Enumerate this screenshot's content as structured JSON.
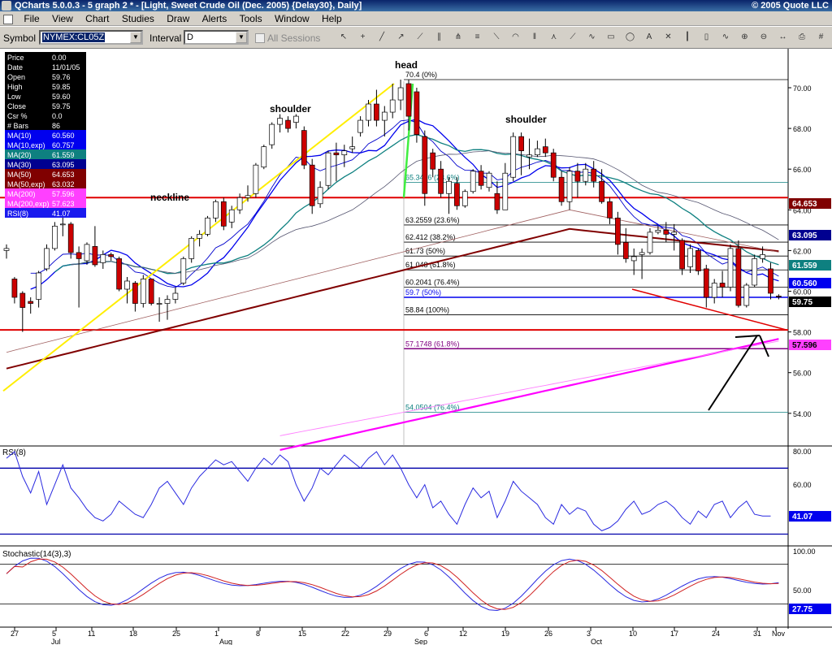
{
  "window": {
    "title": "QCharts 5.0.0.3 - 5 graph 2 * - [Light, Sweet Crude Oil (Dec. 2005) {Delay30}, Daily]",
    "copyright": "© 2005 Quote LLC"
  },
  "menu": [
    "File",
    "View",
    "Chart",
    "Studies",
    "Draw",
    "Alerts",
    "Tools",
    "Window",
    "Help"
  ],
  "toolbar": {
    "symbol_label": "Symbol",
    "symbol_value": "NYMEX:CL05Z",
    "interval_label": "Interval",
    "interval_value": "D",
    "all_sessions_label": "All Sessions"
  },
  "tools": [
    "cursor-icon",
    "crosshair-icon",
    "line-icon",
    "ray-icon",
    "extended-line-icon",
    "channel-icon",
    "andrews-pitchfork-icon",
    "fibonacci-retracement-icon",
    "fibonacci-fan-icon",
    "fibonacci-arcs-icon",
    "fibonacci-timezones-icon",
    "gann-fan-icon",
    "speed-lines-icon",
    "cycle-lines-icon",
    "rectangle-icon",
    "ellipse-icon",
    "text-annotation-icon",
    "delete-drawing-icon",
    "bar-style-icon",
    "candle-style-icon",
    "line-style-icon",
    "zoom-in-icon",
    "zoom-out-icon",
    "scroll-icon",
    "print-icon",
    "grid-icon"
  ],
  "data_window": {
    "rows": [
      [
        "Price",
        "0.00",
        "#000000",
        "#ffffff"
      ],
      [
        "Date",
        "11/01/05",
        "#000000",
        "#ffffff"
      ],
      [
        "Open",
        "59.76",
        "#000000",
        "#ffffff"
      ],
      [
        "High",
        "59.85",
        "#000000",
        "#ffffff"
      ],
      [
        "Low",
        "59.60",
        "#000000",
        "#ffffff"
      ],
      [
        "Close",
        "59.75",
        "#000000",
        "#ffffff"
      ],
      [
        "Csr %",
        "0.0",
        "#000000",
        "#ffffff"
      ],
      [
        "# Bars",
        "86",
        "#000000",
        "#ffffff"
      ],
      [
        "MA(10)",
        "60.560",
        "#0000ee",
        "#ffffff"
      ],
      [
        "MA(10,exp)",
        "60.757",
        "#0000ee",
        "#ffffff"
      ],
      [
        "MA(20)",
        "61.559",
        "#0e8080",
        "#ffffff"
      ],
      [
        "MA(30)",
        "63.095",
        "#000090",
        "#ffffff"
      ],
      [
        "MA(50)",
        "64.653",
        "#800000",
        "#ffffff"
      ],
      [
        "MA(50,exp)",
        "63.032",
        "#800000",
        "#ffffff"
      ],
      [
        "MA(200)",
        "57.596",
        "#ff40ff",
        "#ffffff"
      ],
      [
        "MA(200,exp)",
        "57.623",
        "#ff40ff",
        "#ffffff"
      ],
      [
        "RSI(8)",
        "41.07",
        "#1a1aee",
        "#ffffff"
      ]
    ]
  },
  "annotations": {
    "head": "head",
    "shoulder_left": "shoulder",
    "shoulder_right": "shoulder",
    "neckline": "neckline"
  },
  "fib_top": [
    "70.4 (0%)",
    "65.3496 (23.6%)",
    "63.2559 (23.6%)",
    "62.412 (38.2%)",
    "61.73 (50%)",
    "61.048 (61.8%)",
    "60.2041 (76.4%)",
    "59.7 (50%)",
    "58.84 (100%)",
    "57.1748 (61.8%)",
    "54.0504 (76.4%)"
  ],
  "price_axis": {
    "labels": [
      "70.00",
      "68.00",
      "66.00",
      "64.00",
      "62.00",
      "60.00",
      "58.00",
      "56.00",
      "54.00"
    ],
    "badges": [
      [
        "64.653",
        "#800000",
        "#ffffff"
      ],
      [
        "63.095",
        "#000090",
        "#ffffff"
      ],
      [
        "61.559",
        "#0e8080",
        "#ffffff"
      ],
      [
        "60.560",
        "#0000ee",
        "#ffffff"
      ],
      [
        "59.75",
        "#000000",
        "#ffffff"
      ],
      [
        "57.596",
        "#ff40ff",
        "#000000"
      ]
    ]
  },
  "rsi_panel": {
    "title": "RSI(8)",
    "labels": [
      "80.00",
      "60.00"
    ],
    "value": "41.07"
  },
  "stoch_panel": {
    "title": "Stochastic(14(3),3)",
    "labels": [
      "100.00",
      "50.00"
    ],
    "value": "27.75"
  },
  "date_axis": {
    "days": [
      "27",
      "5",
      "11",
      "18",
      "25",
      "1",
      "8",
      "15",
      "22",
      "29",
      "6",
      "12",
      "19",
      "26",
      "3",
      "10",
      "17",
      "24",
      "31",
      "Nov"
    ],
    "months": [
      "Jul",
      "Aug",
      "Sep",
      "Oct"
    ]
  },
  "chart_data": {
    "type": "candlestick",
    "symbol": "NYMEX:CL05Z",
    "ylim": [
      52,
      71
    ],
    "ohlc": [
      [
        62.0,
        62.3,
        61.6,
        62.1
      ],
      [
        60.6,
        60.7,
        59.4,
        59.7
      ],
      [
        59.9,
        60.0,
        58.0,
        59.2
      ],
      [
        59.5,
        59.7,
        58.9,
        59.4
      ],
      [
        59.6,
        61.0,
        59.2,
        60.9
      ],
      [
        61.1,
        62.3,
        61.0,
        62.1
      ],
      [
        62.1,
        63.4,
        62.0,
        63.2
      ],
      [
        63.3,
        63.8,
        62.7,
        63.3
      ],
      [
        63.3,
        63.4,
        61.6,
        61.9
      ],
      [
        61.9,
        62.2,
        59.2,
        61.6
      ],
      [
        61.5,
        62.4,
        61.3,
        62.3
      ],
      [
        62.2,
        63.2,
        61.2,
        61.3
      ],
      [
        61.4,
        62.0,
        61.1,
        61.8
      ],
      [
        61.8,
        61.9,
        61.5,
        61.7
      ],
      [
        61.6,
        61.7,
        60.0,
        60.1
      ],
      [
        60.1,
        60.7,
        59.4,
        60.5
      ],
      [
        60.4,
        60.5,
        59.0,
        59.4
      ],
      [
        59.4,
        60.8,
        59.2,
        60.6
      ],
      [
        60.6,
        60.6,
        59.3,
        59.4
      ],
      [
        59.4,
        59.7,
        58.5,
        59.4
      ],
      [
        59.4,
        59.8,
        58.6,
        59.6
      ],
      [
        59.6,
        60.2,
        59.4,
        59.9
      ],
      [
        60.4,
        61.7,
        60.3,
        61.6
      ],
      [
        61.6,
        62.7,
        61.4,
        62.6
      ],
      [
        62.6,
        63.0,
        62.2,
        62.8
      ],
      [
        62.8,
        63.7,
        62.7,
        63.6
      ],
      [
        63.6,
        64.5,
        63.4,
        64.4
      ],
      [
        64.4,
        64.6,
        63.0,
        63.2
      ],
      [
        63.4,
        64.2,
        63.1,
        64.0
      ],
      [
        64.0,
        64.8,
        63.8,
        64.6
      ],
      [
        64.6,
        65.2,
        64.4,
        64.7
      ],
      [
        64.8,
        66.3,
        64.6,
        66.2
      ],
      [
        66.1,
        67.2,
        66.0,
        67.1
      ],
      [
        67.2,
        68.3,
        67.0,
        68.2
      ],
      [
        68.2,
        68.7,
        67.8,
        68.5
      ],
      [
        68.4,
        68.6,
        67.8,
        68.0
      ],
      [
        68.3,
        68.7,
        68.0,
        68.6
      ],
      [
        67.9,
        68.1,
        66.0,
        66.2
      ],
      [
        66.2,
        66.5,
        63.8,
        64.2
      ],
      [
        64.3,
        65.4,
        64.1,
        65.1
      ],
      [
        65.2,
        66.9,
        65.0,
        66.8
      ],
      [
        66.8,
        67.3,
        65.4,
        66.7
      ],
      [
        66.7,
        67.2,
        66.1,
        66.9
      ],
      [
        67.0,
        67.6,
        66.8,
        67.1
      ],
      [
        67.8,
        68.6,
        67.6,
        68.4
      ],
      [
        68.4,
        69.4,
        68.1,
        69.2
      ],
      [
        69.2,
        69.9,
        68.1,
        68.4
      ],
      [
        68.4,
        69.1,
        67.6,
        68.8
      ],
      [
        68.8,
        70.2,
        68.5,
        69.4
      ],
      [
        69.4,
        70.4,
        68.9,
        70.0
      ],
      [
        70.2,
        70.4,
        67.9,
        68.6
      ],
      [
        69.8,
        70.0,
        67.3,
        67.7
      ],
      [
        67.6,
        67.9,
        64.2,
        64.8
      ],
      [
        66.8,
        67.0,
        65.6,
        66.0
      ],
      [
        66.0,
        66.4,
        64.6,
        64.8
      ],
      [
        64.8,
        65.6,
        63.8,
        65.4
      ],
      [
        65.3,
        65.6,
        64.0,
        64.2
      ],
      [
        64.2,
        65.0,
        64.1,
        64.9
      ],
      [
        64.9,
        66.0,
        64.8,
        65.9
      ],
      [
        65.9,
        66.2,
        65.0,
        65.2
      ],
      [
        65.1,
        65.9,
        64.9,
        65.8
      ],
      [
        64.8,
        65.4,
        63.8,
        64.0
      ],
      [
        64.0,
        66.3,
        64.0,
        65.8
      ],
      [
        65.6,
        67.8,
        65.4,
        67.6
      ],
      [
        67.6,
        67.8,
        65.7,
        66.9
      ],
      [
        66.6,
        67.5,
        66.0,
        66.7
      ],
      [
        66.7,
        67.4,
        66.6,
        67.0
      ],
      [
        67.1,
        67.5,
        66.6,
        66.8
      ],
      [
        66.8,
        67.0,
        65.4,
        65.6
      ],
      [
        65.6,
        65.9,
        64.2,
        64.4
      ],
      [
        64.4,
        66.1,
        64.0,
        65.9
      ],
      [
        65.9,
        66.3,
        64.6,
        65.4
      ],
      [
        65.4,
        66.3,
        65.2,
        66.0
      ],
      [
        66.0,
        66.4,
        65.1,
        65.4
      ],
      [
        65.4,
        66.0,
        64.3,
        64.4
      ],
      [
        64.4,
        64.6,
        63.3,
        63.6
      ],
      [
        63.6,
        63.9,
        61.8,
        62.3
      ],
      [
        62.4,
        63.1,
        61.4,
        61.6
      ],
      [
        61.5,
        62.1,
        60.8,
        61.7
      ],
      [
        61.8,
        62.1,
        60.6,
        61.9
      ],
      [
        61.9,
        63.1,
        61.8,
        62.9
      ],
      [
        62.9,
        63.2,
        62.8,
        63.0
      ],
      [
        63.0,
        63.4,
        62.4,
        62.8
      ],
      [
        62.8,
        63.3,
        62.0,
        62.9
      ],
      [
        62.5,
        62.6,
        60.8,
        61.1
      ],
      [
        61.2,
        62.3,
        60.9,
        62.1
      ],
      [
        62.0,
        62.1,
        60.8,
        61.0
      ],
      [
        61.1,
        61.3,
        59.2,
        59.7
      ],
      [
        59.7,
        60.6,
        59.4,
        60.4
      ],
      [
        60.4,
        61.0,
        59.7,
        60.2
      ],
      [
        60.2,
        62.3,
        60.0,
        62.1
      ],
      [
        62.1,
        62.5,
        59.2,
        59.3
      ],
      [
        59.3,
        60.4,
        59.2,
        60.3
      ],
      [
        60.3,
        61.8,
        60.2,
        61.6
      ],
      [
        61.6,
        62.2,
        61.4,
        61.8
      ],
      [
        61.1,
        61.4,
        59.6,
        59.9
      ],
      [
        59.76,
        59.85,
        59.6,
        59.75
      ]
    ],
    "fib_levels": [
      70.4,
      65.3496,
      63.2559,
      62.412,
      61.73,
      61.048,
      60.2041,
      59.7,
      58.84,
      57.1748,
      54.0504
    ],
    "neckline_upper": 64.6,
    "neckline_lower": 58.1
  }
}
